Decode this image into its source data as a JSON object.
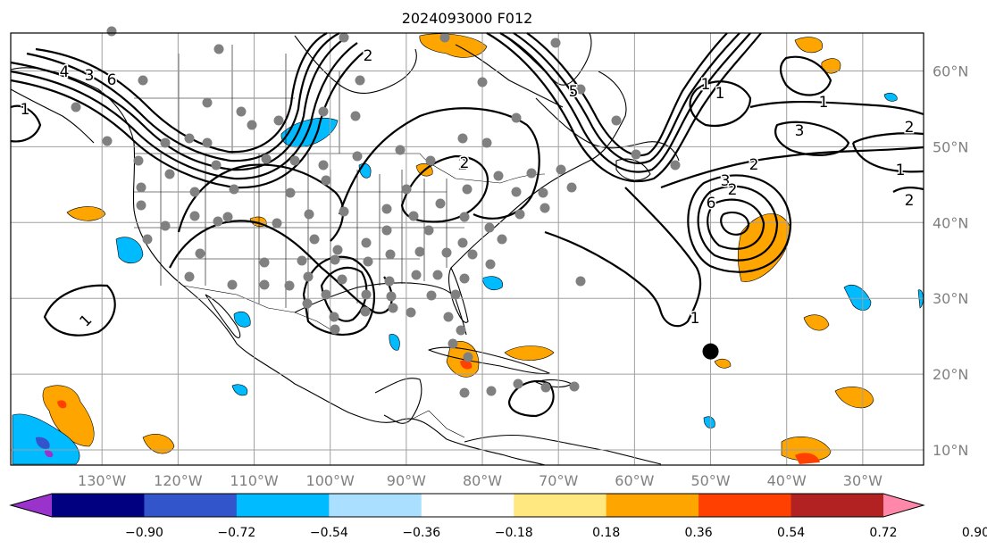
{
  "title": "2024093000 F012",
  "map": {
    "lon_range": [
      -142,
      -22
    ],
    "lat_range": [
      8,
      65
    ],
    "lon_ticks": [
      "130°W",
      "120°W",
      "110°W",
      "100°W",
      "90°W",
      "80°W",
      "70°W",
      "60°W",
      "50°W",
      "40°W",
      "30°W"
    ],
    "lat_ticks": [
      "10°N",
      "20°N",
      "30°N",
      "40°N",
      "50°N",
      "60°N"
    ],
    "contour_labels": [
      "1",
      "3",
      "6",
      "4",
      "1",
      "2",
      "5",
      "2",
      "1",
      "3",
      "2",
      "1",
      "1",
      "2",
      "3",
      "1",
      "2",
      "1",
      "2",
      "6",
      "2"
    ],
    "marker": {
      "name": "current position",
      "lon": -50,
      "lat": 23
    }
  },
  "colorbar": {
    "ticks": [
      "−0.90",
      "−0.72",
      "−0.54",
      "−0.36",
      "−0.18",
      "0.18",
      "0.36",
      "0.54",
      "0.72",
      "0.90"
    ],
    "colors": [
      "#9933cc",
      "#000080",
      "#3355cc",
      "#00bbff",
      "#aadfff",
      "#ffffff",
      "#ffe880",
      "#ffa500",
      "#ff4000",
      "#b22222",
      "#ff88aa"
    ],
    "extend": "both"
  },
  "colors": {
    "station": "#808080",
    "grid": "#a0a0a0"
  }
}
